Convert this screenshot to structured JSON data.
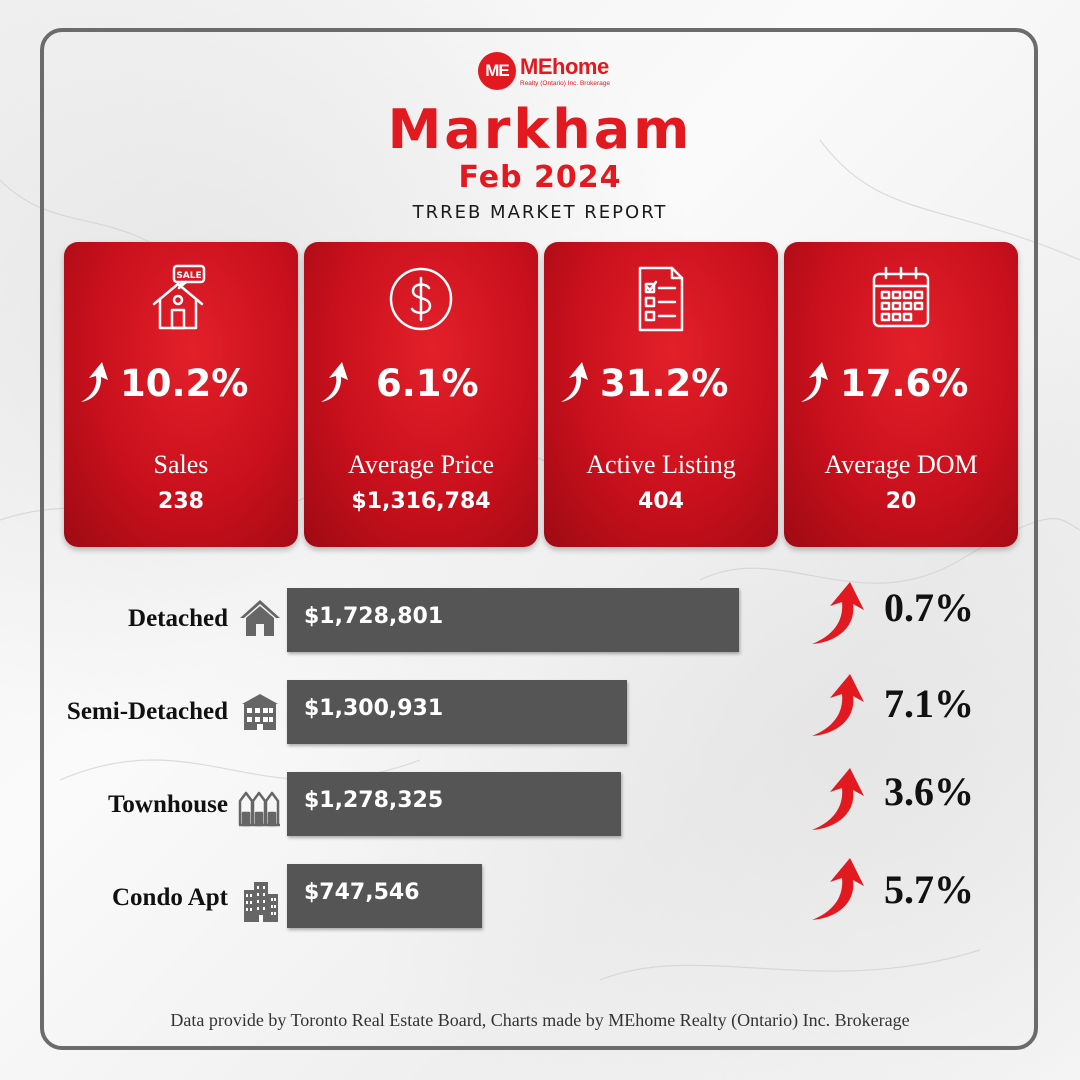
{
  "logo": {
    "badge": "ME",
    "name": "MEhome",
    "subtitle": "Realty (Ontario) Inc. Brokerage"
  },
  "header": {
    "city": "Markham",
    "period": "Feb 2024",
    "report": "TRREB MARKET REPORT"
  },
  "stats": [
    {
      "icon": "house-sale-icon",
      "change": "10.2%",
      "label": "Sales",
      "value": "238"
    },
    {
      "icon": "dollar-icon",
      "change": "6.1%",
      "label": "Average Price",
      "value": "$1,316,784"
    },
    {
      "icon": "checklist-icon",
      "change": "31.2%",
      "label": "Active Listing",
      "value": "404"
    },
    {
      "icon": "calendar-icon",
      "change": "17.6%",
      "label": "Average DOM",
      "value": "20"
    }
  ],
  "colors": {
    "accent": "#e2191f",
    "card": "#c8101c",
    "bar": "#555555"
  },
  "chart_data": {
    "type": "bar",
    "orientation": "horizontal",
    "categories": [
      "Detached",
      "Semi-Detached",
      "Townhouse",
      "Condo Apt"
    ],
    "values": [
      1728801,
      1300931,
      1278325,
      747546
    ],
    "value_labels": [
      "$1,728,801",
      "$1,300,931",
      "$1,278,325",
      "$747,546"
    ],
    "changes": [
      "0.7%",
      "7.1%",
      "3.6%",
      "5.7%"
    ],
    "icons": [
      "detached-house-icon",
      "semi-detached-icon",
      "townhouse-icon",
      "condo-building-icon"
    ],
    "xlim": [
      0,
      1728801
    ],
    "grid": false
  },
  "footer": "Data provide by Toronto Real Estate Board, Charts made by MEhome Realty (Ontario) Inc. Brokerage"
}
